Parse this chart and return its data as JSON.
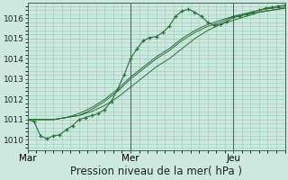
{
  "background_color": "#cce8df",
  "plot_bg_color": "#cce8df",
  "grid_color": "#99ccbb",
  "line_color": "#2d6e3a",
  "marker_color": "#2d6e3a",
  "xlabel": "Pression niveau de la mer( hPa )",
  "ylim": [
    1009.5,
    1016.75
  ],
  "yticks": [
    1010,
    1011,
    1012,
    1013,
    1014,
    1015,
    1016
  ],
  "xtick_labels": [
    "Mar",
    "Mer",
    "Jeu"
  ],
  "xtick_positions": [
    0,
    48,
    96
  ],
  "total_hours": 120,
  "line_smooth1_x": [
    0,
    6,
    12,
    18,
    24,
    30,
    36,
    42,
    48,
    54,
    60,
    66,
    72,
    78,
    84,
    90,
    96,
    102,
    108,
    114,
    120
  ],
  "line_smooth1_y": [
    1011.0,
    1011.0,
    1011.0,
    1011.1,
    1011.2,
    1011.4,
    1011.7,
    1012.1,
    1012.6,
    1013.1,
    1013.6,
    1014.0,
    1014.5,
    1015.0,
    1015.4,
    1015.7,
    1015.9,
    1016.1,
    1016.3,
    1016.4,
    1016.5
  ],
  "line_smooth2_x": [
    0,
    6,
    12,
    18,
    24,
    30,
    36,
    42,
    48,
    54,
    60,
    66,
    72,
    78,
    84,
    90,
    96,
    102,
    108,
    114,
    120
  ],
  "line_smooth2_y": [
    1011.0,
    1011.0,
    1011.0,
    1011.1,
    1011.2,
    1011.5,
    1011.9,
    1012.4,
    1013.0,
    1013.5,
    1014.0,
    1014.4,
    1014.9,
    1015.3,
    1015.6,
    1015.8,
    1016.1,
    1016.2,
    1016.3,
    1016.4,
    1016.5
  ],
  "line_smooth3_x": [
    0,
    6,
    12,
    18,
    24,
    30,
    36,
    42,
    48,
    54,
    60,
    66,
    72,
    78,
    84,
    90,
    96,
    102,
    108,
    114,
    120
  ],
  "line_smooth3_y": [
    1011.0,
    1011.0,
    1011.0,
    1011.1,
    1011.3,
    1011.6,
    1012.0,
    1012.5,
    1013.1,
    1013.6,
    1014.1,
    1014.5,
    1015.0,
    1015.4,
    1015.7,
    1015.9,
    1016.1,
    1016.25,
    1016.4,
    1016.5,
    1016.55
  ],
  "line_marked_x": [
    0,
    3,
    6,
    9,
    12,
    15,
    18,
    21,
    24,
    27,
    30,
    33,
    36,
    39,
    42,
    45,
    48,
    51,
    54,
    57,
    60,
    63,
    66,
    69,
    72,
    75,
    78,
    81,
    84,
    87,
    90,
    93,
    96,
    99,
    102,
    105,
    108,
    111,
    114,
    117,
    120
  ],
  "line_marked_y": [
    1011.0,
    1010.9,
    1010.2,
    1010.05,
    1010.2,
    1010.25,
    1010.5,
    1010.7,
    1011.0,
    1011.1,
    1011.2,
    1011.3,
    1011.5,
    1011.9,
    1012.5,
    1013.2,
    1014.0,
    1014.5,
    1014.9,
    1015.05,
    1015.1,
    1015.3,
    1015.6,
    1016.1,
    1016.35,
    1016.45,
    1016.3,
    1016.1,
    1015.8,
    1015.65,
    1015.7,
    1015.85,
    1016.05,
    1016.1,
    1016.2,
    1016.3,
    1016.4,
    1016.5,
    1016.55,
    1016.6,
    1016.65
  ],
  "vline_x": [
    0,
    48,
    96
  ],
  "xlabel_fontsize": 8.5,
  "ytick_fontsize": 6.5,
  "xtick_fontsize": 7.5
}
